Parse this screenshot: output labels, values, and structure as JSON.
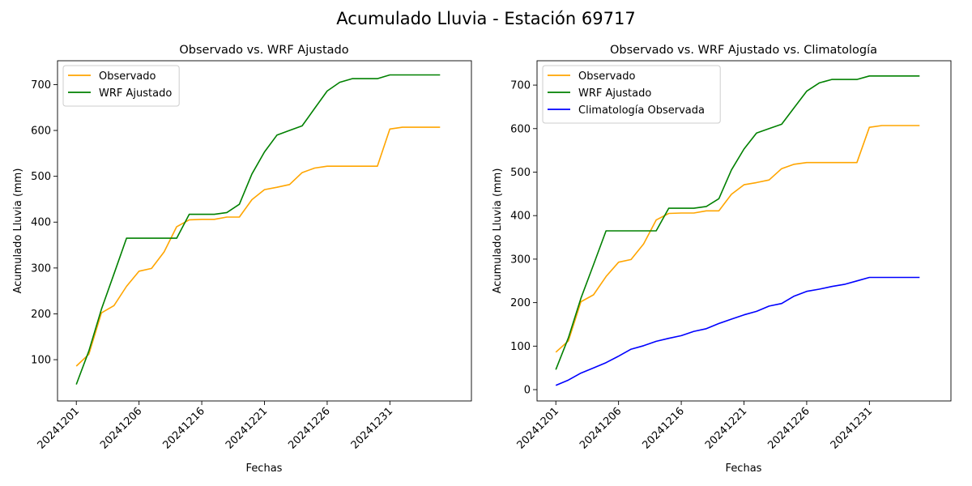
{
  "figure": {
    "suptitle": "Acumulado Lluvia - Estación 69717"
  },
  "chart_data": [
    {
      "type": "line",
      "title": "Observado vs. WRF Ajustado",
      "xlabel": "Fechas",
      "ylabel": "Acumulado Lluvia (mm)",
      "xlim": [
        -1.5,
        31.5
      ],
      "ylim": [
        10,
        752
      ],
      "yticks": [
        100,
        200,
        300,
        400,
        500,
        600,
        700
      ],
      "x_ticks": [
        "20241201",
        "20241206",
        "20241216",
        "20241221",
        "20241226",
        "20241231"
      ],
      "legend": "upper left",
      "grid": false,
      "series": [
        {
          "name": "Observado",
          "color": "#FFA500",
          "x": [
            0,
            1,
            2,
            3,
            4,
            5,
            6,
            7,
            8,
            9,
            10,
            11,
            12,
            13,
            14,
            15,
            16,
            17,
            18,
            19,
            20,
            21,
            22,
            23,
            24,
            25,
            26,
            27,
            28,
            29
          ],
          "y": [
            86,
            112,
            202,
            218,
            260,
            293,
            299,
            335,
            390,
            405,
            406,
            406,
            411,
            411,
            449,
            471,
            476,
            482,
            508,
            518,
            522,
            522,
            522,
            522,
            522,
            603,
            607,
            607,
            607,
            607
          ]
        },
        {
          "name": "WRF Ajustado",
          "color": "#008000",
          "x": [
            0,
            1,
            2,
            3,
            4,
            5,
            6,
            7,
            8,
            9,
            10,
            11,
            12,
            13,
            14,
            15,
            16,
            17,
            18,
            19,
            20,
            21,
            22,
            23,
            24,
            25,
            26,
            27,
            28,
            29
          ],
          "y": [
            46,
            119,
            210,
            287,
            365,
            365,
            365,
            365,
            365,
            417,
            417,
            417,
            421,
            439,
            505,
            553,
            590,
            600,
            610,
            648,
            686,
            705,
            713,
            713,
            713,
            721,
            721,
            721,
            721,
            721
          ]
        }
      ]
    },
    {
      "type": "line",
      "title": "Observado vs. WRF Ajustado vs. Climatología",
      "xlabel": "Fechas",
      "ylabel": "Acumulado Lluvia (mm)",
      "xlim": [
        -1.5,
        31.5
      ],
      "ylim": [
        -26,
        756
      ],
      "yticks": [
        0,
        100,
        200,
        300,
        400,
        500,
        600,
        700
      ],
      "x_ticks": [
        "20241201",
        "20241206",
        "20241216",
        "20241221",
        "20241226",
        "20241231"
      ],
      "legend": "upper left",
      "grid": false,
      "series": [
        {
          "name": "Observado",
          "color": "#FFA500",
          "x": [
            0,
            1,
            2,
            3,
            4,
            5,
            6,
            7,
            8,
            9,
            10,
            11,
            12,
            13,
            14,
            15,
            16,
            17,
            18,
            19,
            20,
            21,
            22,
            23,
            24,
            25,
            26,
            27,
            28,
            29
          ],
          "y": [
            86,
            112,
            202,
            218,
            260,
            293,
            299,
            335,
            390,
            405,
            406,
            406,
            411,
            411,
            449,
            471,
            476,
            482,
            508,
            518,
            522,
            522,
            522,
            522,
            522,
            603,
            607,
            607,
            607,
            607
          ]
        },
        {
          "name": "WRF Ajustado",
          "color": "#008000",
          "x": [
            0,
            1,
            2,
            3,
            4,
            5,
            6,
            7,
            8,
            9,
            10,
            11,
            12,
            13,
            14,
            15,
            16,
            17,
            18,
            19,
            20,
            21,
            22,
            23,
            24,
            25,
            26,
            27,
            28,
            29
          ],
          "y": [
            46,
            119,
            210,
            287,
            365,
            365,
            365,
            365,
            365,
            417,
            417,
            417,
            421,
            439,
            505,
            553,
            590,
            600,
            610,
            648,
            686,
            705,
            713,
            713,
            713,
            721,
            721,
            721,
            721,
            721
          ]
        },
        {
          "name": "Climatología Observada",
          "color": "#0000FF",
          "x": [
            0,
            1,
            2,
            3,
            4,
            5,
            6,
            7,
            8,
            9,
            10,
            11,
            12,
            13,
            14,
            15,
            16,
            17,
            18,
            19,
            20,
            21,
            22,
            23,
            24,
            25,
            26,
            27,
            28,
            29
          ],
          "y": [
            10,
            22,
            38,
            50,
            62,
            77,
            93,
            101,
            111,
            118,
            124,
            134,
            140,
            152,
            162,
            172,
            180,
            192,
            198,
            215,
            226,
            231,
            237,
            242,
            250,
            258,
            258,
            258,
            258,
            258
          ]
        }
      ]
    }
  ]
}
